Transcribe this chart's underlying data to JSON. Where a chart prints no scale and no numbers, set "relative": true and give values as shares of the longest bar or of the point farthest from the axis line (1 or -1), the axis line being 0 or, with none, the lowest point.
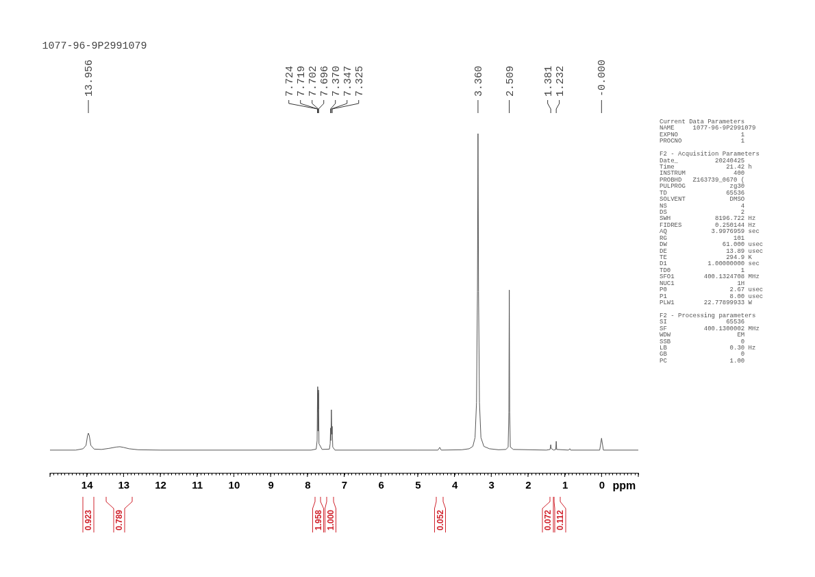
{
  "chart_data": {
    "type": "line",
    "title": "1077-96-9P2991079",
    "xlabel": "ppm",
    "relative": true,
    "xlim": [
      15,
      -1
    ],
    "xticks": [
      {
        "value": 15,
        "label": null
      },
      {
        "value": 14.9,
        "label": null
      },
      {
        "value": 14.8,
        "label": null
      },
      {
        "value": 14.7,
        "label": null
      },
      {
        "value": 14.6,
        "label": null
      },
      {
        "value": 14.5,
        "label": null
      },
      {
        "value": 14.4,
        "label": null
      },
      {
        "value": 14.3,
        "label": null
      },
      {
        "value": 14.2,
        "label": null
      },
      {
        "value": 14.1,
        "label": null
      },
      14,
      {
        "value": 13.9,
        "label": null
      },
      {
        "value": 13.8,
        "label": null
      },
      {
        "value": 13.7,
        "label": null
      },
      {
        "value": 13.6,
        "label": null
      },
      {
        "value": 13.5,
        "label": null
      },
      {
        "value": 13.4,
        "label": null
      },
      {
        "value": 13.3,
        "label": null
      },
      {
        "value": 13.2,
        "label": null
      },
      {
        "value": 13.1,
        "label": null
      },
      13,
      {
        "value": 12.9,
        "label": null
      },
      {
        "value": 12.8,
        "label": null
      },
      {
        "value": 12.7,
        "label": null
      },
      {
        "value": 12.6,
        "label": null
      },
      {
        "value": 12.5,
        "label": null
      },
      {
        "value": 12.4,
        "label": null
      },
      {
        "value": 12.3,
        "label": null
      },
      {
        "value": 12.2,
        "label": null
      },
      {
        "value": 12.1,
        "label": null
      },
      12,
      {
        "value": 11.9,
        "label": null
      },
      {
        "value": 11.8,
        "label": null
      },
      {
        "value": 11.7,
        "label": null
      },
      {
        "value": 11.6,
        "label": null
      },
      {
        "value": 11.5,
        "label": null
      },
      {
        "value": 11.4,
        "label": null
      },
      {
        "value": 11.3,
        "label": null
      },
      {
        "value": 11.2,
        "label": null
      },
      {
        "value": 11.1,
        "label": null
      },
      11,
      {
        "value": 10.9,
        "label": null
      },
      {
        "value": 10.8,
        "label": null
      },
      {
        "value": 10.7,
        "label": null
      },
      {
        "value": 10.6,
        "label": null
      },
      {
        "value": 10.5,
        "label": null
      },
      {
        "value": 10.4,
        "label": null
      },
      {
        "value": 10.3,
        "label": null
      },
      {
        "value": 10.2,
        "label": null
      },
      {
        "value": 10.1,
        "label": null
      },
      10,
      {
        "value": 9.9,
        "label": null
      },
      {
        "value": 9.8,
        "label": null
      },
      {
        "value": 9.7,
        "label": null
      },
      {
        "value": 9.6,
        "label": null
      },
      {
        "value": 9.5,
        "label": null
      },
      {
        "value": 9.4,
        "label": null
      },
      {
        "value": 9.3,
        "label": null
      },
      {
        "value": 9.2,
        "label": null
      },
      {
        "value": 9.1,
        "label": null
      },
      9,
      {
        "value": 8.9,
        "label": null
      },
      {
        "value": 8.8,
        "label": null
      },
      {
        "value": 8.7,
        "label": null
      },
      {
        "value": 8.6,
        "label": null
      },
      {
        "value": 8.5,
        "label": null
      },
      {
        "value": 8.4,
        "label": null
      },
      {
        "value": 8.3,
        "label": null
      },
      {
        "value": 8.2,
        "label": null
      },
      {
        "value": 8.1,
        "label": null
      },
      8,
      {
        "value": 7.9,
        "label": null
      },
      {
        "value": 7.8,
        "label": null
      },
      {
        "value": 7.7,
        "label": null
      },
      {
        "value": 7.6,
        "label": null
      },
      {
        "value": 7.5,
        "label": null
      },
      {
        "value": 7.4,
        "label": null
      },
      {
        "value": 7.3,
        "label": null
      },
      {
        "value": 7.2,
        "label": null
      },
      {
        "value": 7.1,
        "label": null
      },
      7,
      {
        "value": 6.9,
        "label": null
      },
      {
        "value": 6.8,
        "label": null
      },
      {
        "value": 6.7,
        "label": null
      },
      {
        "value": 6.6,
        "label": null
      },
      {
        "value": 6.5,
        "label": null
      },
      {
        "value": 6.4,
        "label": null
      },
      {
        "value": 6.3,
        "label": null
      },
      {
        "value": 6.2,
        "label": null
      },
      {
        "value": 6.1,
        "label": null
      },
      6,
      {
        "value": 5.9,
        "label": null
      },
      {
        "value": 5.8,
        "label": null
      },
      {
        "value": 5.7,
        "label": null
      },
      {
        "value": 5.6,
        "label": null
      },
      {
        "value": 5.5,
        "label": null
      },
      {
        "value": 5.4,
        "label": null
      },
      {
        "value": 5.3,
        "label": null
      },
      {
        "value": 5.2,
        "label": null
      },
      {
        "value": 5.1,
        "label": null
      },
      5,
      {
        "value": 4.9,
        "label": null
      },
      {
        "value": 4.8,
        "label": null
      },
      {
        "value": 4.7,
        "label": null
      },
      {
        "value": 4.6,
        "label": null
      },
      {
        "value": 4.5,
        "label": null
      },
      {
        "value": 4.4,
        "label": null
      },
      {
        "value": 4.3,
        "label": null
      },
      {
        "value": 4.2,
        "label": null
      },
      {
        "value": 4.1,
        "label": null
      },
      4,
      {
        "value": 3.9,
        "label": null
      },
      {
        "value": 3.8,
        "label": null
      },
      {
        "value": 3.7,
        "label": null
      },
      {
        "value": 3.6,
        "label": null
      },
      {
        "value": 3.5,
        "label": null
      },
      {
        "value": 3.4,
        "label": null
      },
      {
        "value": 3.3,
        "label": null
      },
      {
        "value": 3.2,
        "label": null
      },
      {
        "value": 3.1,
        "label": null
      },
      3,
      {
        "value": 2.9,
        "label": null
      },
      {
        "value": 2.8,
        "label": null
      },
      {
        "value": 2.7,
        "label": null
      },
      {
        "value": 2.6,
        "label": null
      },
      {
        "value": 2.5,
        "label": null
      },
      {
        "value": 2.4,
        "label": null
      },
      {
        "value": 2.3,
        "label": null
      },
      {
        "value": 2.2,
        "label": null
      },
      {
        "value": 2.1,
        "label": null
      },
      2,
      {
        "value": 1.9,
        "label": null
      },
      {
        "value": 1.8,
        "label": null
      },
      {
        "value": 1.7,
        "label": null
      },
      {
        "value": 1.6,
        "label": null
      },
      {
        "value": 1.5,
        "label": null
      },
      {
        "value": 1.4,
        "label": null
      },
      {
        "value": 1.3,
        "label": null
      },
      {
        "value": 1.2,
        "label": null
      },
      {
        "value": 1.1,
        "label": null
      },
      1,
      {
        "value": 0.9,
        "label": null
      },
      {
        "value": 0.8,
        "label": null
      },
      {
        "value": 0.7,
        "label": null
      },
      {
        "value": 0.6,
        "label": null
      },
      {
        "value": 0.5,
        "label": null
      },
      {
        "value": 0.4,
        "label": null
      },
      {
        "value": 0.3,
        "label": null
      },
      {
        "value": 0.2,
        "label": null
      },
      {
        "value": 0.1,
        "label": null
      },
      0,
      {
        "value": -0.1,
        "label": null
      },
      {
        "value": -0.2,
        "label": null
      },
      {
        "value": -0.3,
        "label": null
      },
      {
        "value": -0.4,
        "label": null
      },
      {
        "value": -0.5,
        "label": null
      },
      {
        "value": -0.6,
        "label": null
      },
      {
        "value": -0.7,
        "label": null
      },
      {
        "value": -0.8,
        "label": null
      },
      {
        "value": -0.9,
        "label": null
      },
      {
        "value": -1,
        "label": null
      }
    ],
    "series": [
      {
        "color": "#555555",
        "x": [
          15,
          14.3,
          14.1,
          14.02,
          13.98,
          13.956,
          13.93,
          13.89,
          13.8,
          13.6,
          13.4,
          13.2,
          13.1,
          13.0,
          12.85,
          12.6,
          12.0,
          9.0,
          7.9,
          7.76,
          7.735,
          7.724,
          7.721,
          7.719,
          7.712,
          7.702,
          7.699,
          7.696,
          7.685,
          7.6,
          7.4,
          7.38,
          7.37,
          7.36,
          7.347,
          7.335,
          7.325,
          7.31,
          7.25,
          5.0,
          4.45,
          4.4,
          4.36,
          3.8,
          3.6,
          3.5,
          3.44,
          3.4,
          3.375,
          3.36,
          3.345,
          3.32,
          3.28,
          3.2,
          3.05,
          2.8,
          2.6,
          2.54,
          2.52,
          2.509,
          2.498,
          2.48,
          2.4,
          1.5,
          1.4,
          1.39,
          1.381,
          1.37,
          1.3,
          1.245,
          1.232,
          1.22,
          0.9,
          0.86,
          0.84,
          0.05,
          0.0,
          -0.05,
          -1
        ],
        "values": [
          0.067,
          0.067,
          0.071,
          0.081,
          0.109,
          0.117,
          0.109,
          0.081,
          0.07,
          0.069,
          0.072,
          0.076,
          0.077,
          0.075,
          0.071,
          0.068,
          0.067,
          0.067,
          0.067,
          0.07,
          0.095,
          0.244,
          0.179,
          0.254,
          0.123,
          0.235,
          0.188,
          0.244,
          0.086,
          0.069,
          0.07,
          0.086,
          0.132,
          0.095,
          0.186,
          0.114,
          0.137,
          0.076,
          0.067,
          0.067,
          0.067,
          0.075,
          0.067,
          0.068,
          0.071,
          0.078,
          0.104,
          0.207,
          0.534,
          1,
          0.534,
          0.207,
          0.104,
          0.078,
          0.071,
          0.068,
          0.069,
          0.076,
          0.179,
          0.539,
          0.179,
          0.076,
          0.069,
          0.067,
          0.069,
          0.076,
          0.083,
          0.072,
          0.067,
          0.069,
          0.093,
          0.069,
          0.067,
          0.071,
          0.067,
          0.067,
          0.102,
          0.067,
          0.067
        ]
      }
    ],
    "annotations": [
      {
        "text": "13.956",
        "x": 13.956
      },
      {
        "text": "7.724",
        "x": 7.724
      },
      {
        "text": "7.719",
        "x": 7.719
      },
      {
        "text": "7.702",
        "x": 7.702
      },
      {
        "text": "7.696",
        "x": 7.696
      },
      {
        "text": "7.370",
        "x": 7.37
      },
      {
        "text": "7.347",
        "x": 7.347
      },
      {
        "text": "7.325",
        "x": 7.325
      },
      {
        "text": "3.360",
        "x": 3.36
      },
      {
        "text": "2.509",
        "x": 2.509
      },
      {
        "text": "1.381",
        "x": 1.381
      },
      {
        "text": "1.232",
        "x": 1.232
      },
      {
        "text": "-0.000",
        "x": 0
      },
      "Current Data Parameters\nNAME     1077-96-9P2991079\nEXPNO                 1\nPROCNO                1\n\nF2 - Acquisition Parameters\nDate_          20240425\nTime              21.42 h\nINSTRUM             400\nPROBHD   Z163739_0670 (\nPULPROG            zg30\nTD                65536\nSOLVENT            DMSO\nNS                    4\nDS                    2\nSWH            8196.722 Hz\nFIDRES         0.250144 Hz\nAQ            3.9976959 sec\nRG                  101\nDW               61.000 usec\nDE                13.89 usec\nTE                294.9 K\nD1           1.00000000 sec\nTD0                   1\nSFO1        400.1324708 MHz\nNUC1                 1H\nP0                 2.67 usec\nP1                 8.00 usec\nPLW1        22.77899933 W\n\nF2 - Processing parameters\nSI                65536\nSF          400.1300002 MHz\nWDW                  EM\nSSB                   0\nLB                 0.30 Hz\nGB                    0\nPC                 1.00",
      "0.923",
      "0.789",
      "1.958",
      "1.000",
      "0.052",
      "0.072",
      "0.112"
    ]
  }
}
